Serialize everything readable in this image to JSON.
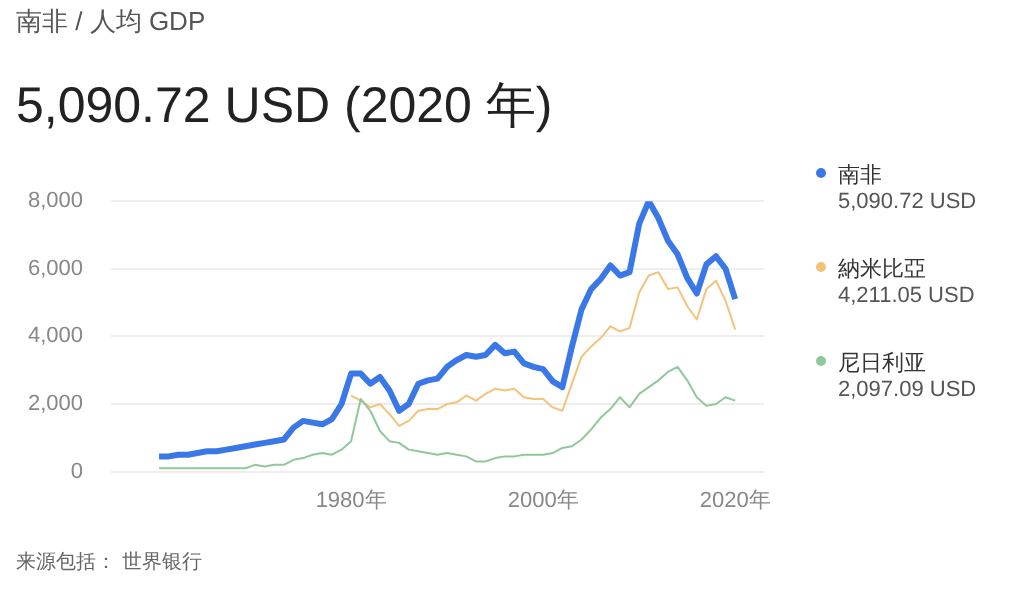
{
  "chart_data": {
    "type": "line",
    "subtitle": "南非 / 人均 GDP",
    "title": "5,090.72 USD (2020 年)",
    "x": [
      1960,
      1961,
      1962,
      1963,
      1964,
      1965,
      1966,
      1967,
      1968,
      1969,
      1970,
      1971,
      1972,
      1973,
      1974,
      1975,
      1976,
      1977,
      1978,
      1979,
      1980,
      1981,
      1982,
      1983,
      1984,
      1985,
      1986,
      1987,
      1988,
      1989,
      1990,
      1991,
      1992,
      1993,
      1994,
      1995,
      1996,
      1997,
      1998,
      1999,
      2000,
      2001,
      2002,
      2003,
      2004,
      2005,
      2006,
      2007,
      2008,
      2009,
      2010,
      2011,
      2012,
      2013,
      2014,
      2015,
      2016,
      2017,
      2018,
      2019,
      2020
    ],
    "series": [
      {
        "name": "南非",
        "color": "#3b78e7",
        "values": [
          450,
          450,
          500,
          500,
          550,
          600,
          600,
          650,
          700,
          750,
          800,
          850,
          900,
          950,
          1300,
          1500,
          1450,
          1400,
          1550,
          2000,
          2900,
          2900,
          2600,
          2800,
          2400,
          1800,
          2000,
          2600,
          2700,
          2750,
          3100,
          3300,
          3450,
          3400,
          3450,
          3750,
          3500,
          3550,
          3200,
          3100,
          3030,
          2670,
          2500,
          3700,
          4800,
          5400,
          5700,
          6100,
          5800,
          5900,
          7330,
          8000,
          7500,
          6830,
          6430,
          5730,
          5270,
          6130,
          6370,
          6000,
          5100
        ]
      },
      {
        "name": "納米比亞",
        "color": "#f5c27a",
        "values": [
          null,
          null,
          null,
          null,
          null,
          null,
          null,
          null,
          null,
          null,
          null,
          null,
          null,
          null,
          null,
          null,
          null,
          null,
          null,
          null,
          2250,
          2100,
          1900,
          2000,
          1700,
          1350,
          1500,
          1800,
          1850,
          1850,
          2000,
          2050,
          2250,
          2100,
          2300,
          2450,
          2400,
          2450,
          2200,
          2150,
          2150,
          1900,
          1800,
          2600,
          3400,
          3700,
          3950,
          4300,
          4150,
          4250,
          5300,
          5800,
          5900,
          5400,
          5450,
          4900,
          4500,
          5400,
          5650,
          5050,
          4200
        ]
      },
      {
        "name": "尼日利亚",
        "color": "#8fc89a",
        "values": [
          100,
          100,
          100,
          100,
          100,
          100,
          100,
          100,
          100,
          100,
          200,
          150,
          200,
          200,
          350,
          400,
          500,
          550,
          500,
          650,
          900,
          2150,
          1800,
          1200,
          900,
          850,
          650,
          600,
          550,
          500,
          550,
          500,
          450,
          300,
          300,
          400,
          450,
          450,
          500,
          500,
          500,
          550,
          700,
          750,
          950,
          1250,
          1600,
          1850,
          2200,
          1900,
          2300,
          2500,
          2700,
          2950,
          3100,
          2700,
          2200,
          1950,
          2000,
          2200,
          2100
        ]
      }
    ],
    "xlim": [
      1955,
      2023
    ],
    "xticks": [
      {
        "value": 1980,
        "label": "1980年"
      },
      {
        "value": 2000,
        "label": "2000年"
      },
      {
        "value": 2020,
        "label": "2020年"
      }
    ],
    "ylim": [
      0,
      8000
    ],
    "yticks": [
      {
        "value": 0,
        "label": "0"
      },
      {
        "value": 2000,
        "label": "2,000"
      },
      {
        "value": 4000,
        "label": "4,000"
      },
      {
        "value": 6000,
        "label": "6,000"
      },
      {
        "value": 8000,
        "label": "8,000"
      }
    ],
    "grid": "y",
    "legend": "right",
    "marker": "none",
    "annotations": [
      "5,090.72 USD",
      "4,211.05 USD",
      "2,097.09 USD",
      "来源包括： 世界银行"
    ]
  }
}
